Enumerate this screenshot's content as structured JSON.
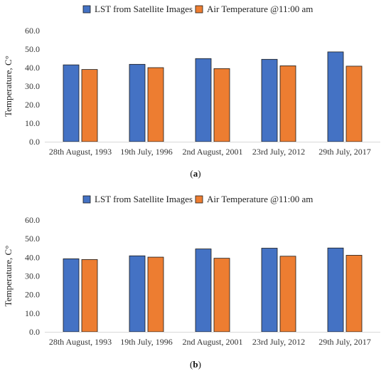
{
  "colors": {
    "lst": "#4472c4",
    "air": "#ed7d31",
    "axis": "#d9d9d9",
    "bar_stroke": "#1a1a1a"
  },
  "chart_data": [
    {
      "type": "bar",
      "panel_label": {
        "open": "(",
        "letter": "a",
        "close": ")"
      },
      "categories": [
        "28th August, 1993",
        "19th July, 1996",
        "2nd August, 2001",
        "23rd July, 2012",
        "29th July, 2017"
      ],
      "series": [
        {
          "name": "LST from Satellite Images",
          "values": [
            41.5,
            41.8,
            44.9,
            44.5,
            48.5
          ]
        },
        {
          "name": "Air Temperature @11:00 am",
          "values": [
            39.0,
            40.0,
            39.5,
            41.0,
            40.8
          ]
        }
      ],
      "ylabel": "Temperature, C°",
      "ylim": [
        0,
        60
      ],
      "yticks": [
        "0.0",
        "10.0",
        "20.0",
        "30.0",
        "40.0",
        "50.0",
        "60.0"
      ],
      "legend": "top-center",
      "grid": false
    },
    {
      "type": "bar",
      "panel_label": {
        "open": "(",
        "letter": "b",
        "close": ")"
      },
      "categories": [
        "28th August, 1993",
        "19th July, 1996",
        "2nd August, 2001",
        "23rd July, 2012",
        "29th July, 2017"
      ],
      "series": [
        {
          "name": "LST from Satellite Images",
          "values": [
            39.2,
            40.8,
            44.5,
            44.9,
            45.0
          ]
        },
        {
          "name": "Air Temperature @11:00 am",
          "values": [
            38.8,
            40.1,
            39.5,
            40.6,
            41.1
          ]
        }
      ],
      "ylabel": "Temperature, C°",
      "ylim": [
        0,
        60
      ],
      "yticks": [
        "0.0",
        "10.0",
        "20.0",
        "30.0",
        "40.0",
        "50.0",
        "60.0"
      ],
      "legend": "top-center",
      "grid": false
    }
  ]
}
